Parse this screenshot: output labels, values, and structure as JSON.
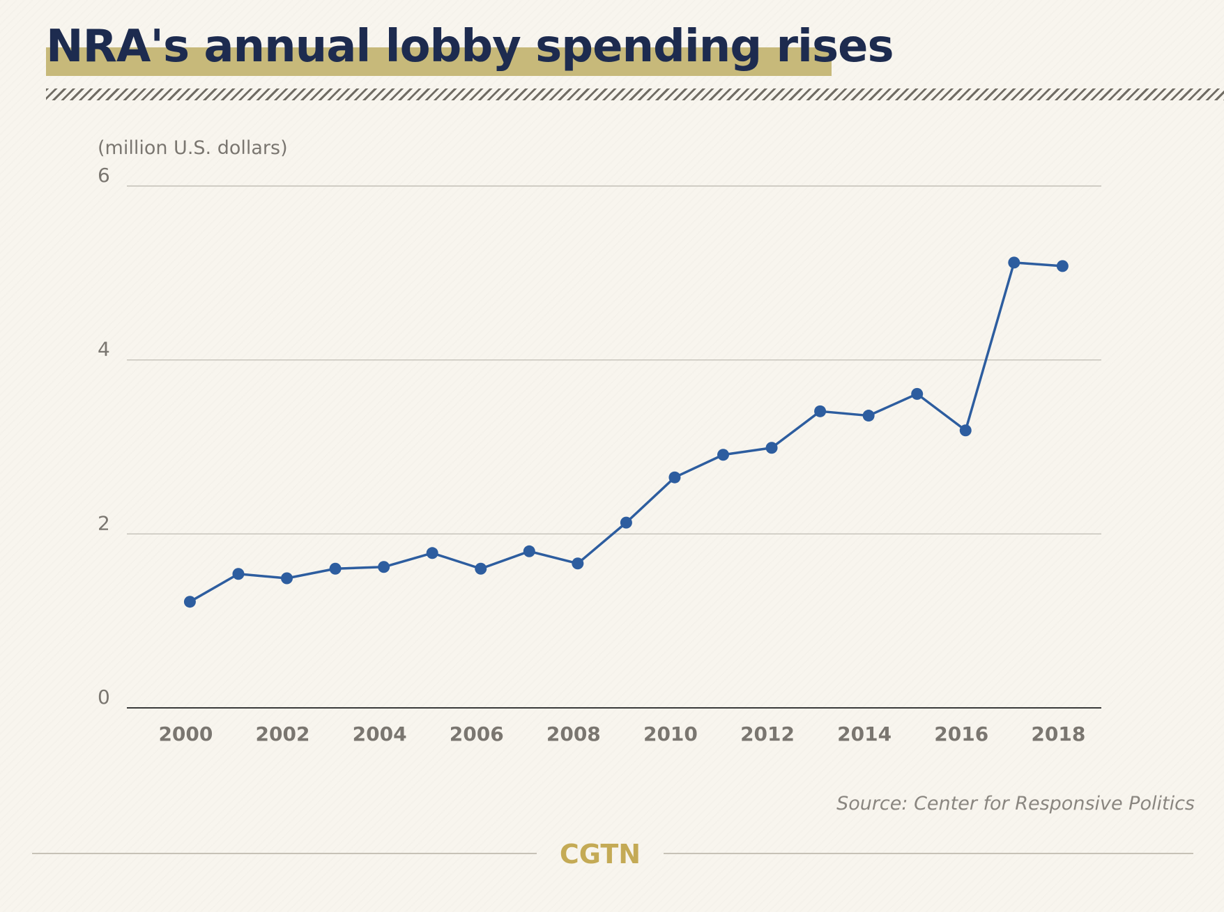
{
  "title": "NRA's annual lobby spending rises",
  "source": "Source: Center for Responsive Politics",
  "brand": "CGTN",
  "colors": {
    "title": "#1d2b4f",
    "title_band": "#c7b97a",
    "series": "#2d5d9f",
    "brand": "#c4aa55",
    "background": "#f8f5ee"
  },
  "chart_data": {
    "type": "line",
    "title": "NRA's annual lobby spending rises",
    "ylabel": "(million U.S. dollars)",
    "xlabel": "",
    "ylim": [
      0,
      6
    ],
    "xlim": [
      1998.7,
      2018.8
    ],
    "grid": true,
    "y_ticks": [
      0,
      2,
      4,
      6
    ],
    "x_ticks": [
      2000,
      2002,
      2004,
      2006,
      2008,
      2010,
      2012,
      2014,
      2016,
      2018
    ],
    "x": [
      2000,
      2001,
      2002,
      2003,
      2004,
      2005,
      2006,
      2007,
      2008,
      2009,
      2010,
      2011,
      2012,
      2013,
      2014,
      2015,
      2016,
      2017,
      2018
    ],
    "series": [
      {
        "name": "",
        "values": [
          1.22,
          1.54,
          1.49,
          1.6,
          1.62,
          1.78,
          1.6,
          1.8,
          1.66,
          2.13,
          2.65,
          2.91,
          2.99,
          3.41,
          3.36,
          3.61,
          3.19,
          5.12,
          5.08
        ]
      }
    ]
  }
}
